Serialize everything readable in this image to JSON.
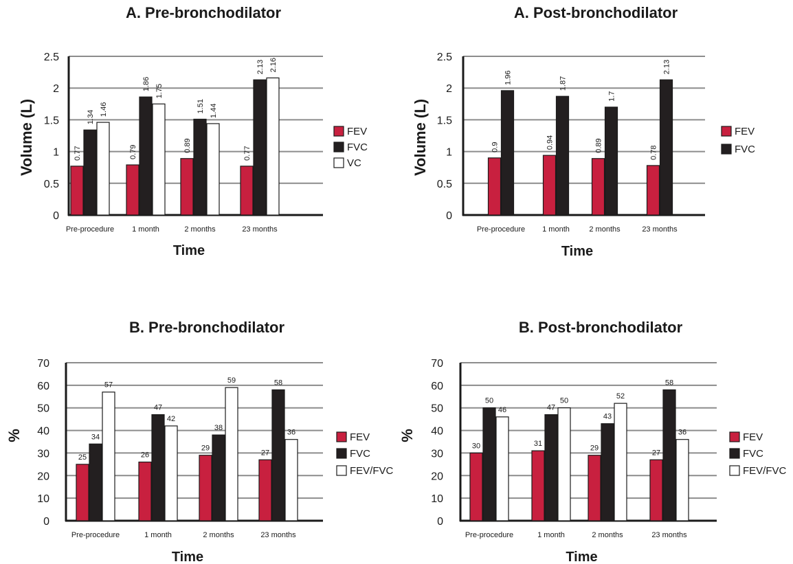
{
  "chart_data": [
    {
      "type": "bar",
      "title": "A. Pre-bronchodilator",
      "xlabel": "Time",
      "ylabel": "Volume (L)",
      "ylim": [
        0,
        2.5
      ],
      "yticks": [
        "0",
        "0.5",
        "1",
        "1.5",
        "2",
        "2.5"
      ],
      "grid": true,
      "legend_position": "right",
      "categories": [
        "Pre-procedure",
        "1 month",
        "2 months",
        "23 months"
      ],
      "series": [
        {
          "name": "FEV",
          "values": [
            0.77,
            0.79,
            0.89,
            0.77
          ],
          "labels": [
            "0.77",
            "0.79",
            "0.89",
            "0.77"
          ],
          "color": "#c8203f"
        },
        {
          "name": "FVC",
          "values": [
            1.34,
            1.86,
            1.51,
            2.13
          ],
          "labels": [
            "1.34",
            "1.86",
            "1.51",
            "2.13"
          ],
          "color": "#231f20"
        },
        {
          "name": "VC",
          "values": [
            1.46,
            1.75,
            1.44,
            2.16
          ],
          "labels": [
            "1.46",
            "1.75",
            "1.44",
            "2.16"
          ],
          "color": "#ffffff"
        }
      ]
    },
    {
      "type": "bar",
      "title": "A. Post-bronchodilator",
      "xlabel": "Time",
      "ylabel": "Volume (L)",
      "ylim": [
        0,
        2.5
      ],
      "yticks": [
        "0",
        "0.5",
        "1",
        "1.5",
        "2",
        "2.5"
      ],
      "grid": true,
      "legend_position": "right",
      "categories": [
        "Pre-procedure",
        "1 month",
        "2 months",
        "23 months"
      ],
      "series": [
        {
          "name": "FEV",
          "values": [
            0.9,
            0.94,
            0.89,
            0.78
          ],
          "labels": [
            "0.9",
            "0.94",
            "0.89",
            "0.78"
          ],
          "color": "#c8203f"
        },
        {
          "name": "FVC",
          "values": [
            1.96,
            1.87,
            1.7,
            2.13
          ],
          "labels": [
            "1.96",
            "1.87",
            "1.7",
            "2.13"
          ],
          "color": "#231f20"
        }
      ]
    },
    {
      "type": "bar",
      "title": "B. Pre-bronchodilator",
      "xlabel": "Time",
      "ylabel": "%",
      "ylim": [
        0,
        70
      ],
      "yticks": [
        "0",
        "10",
        "20",
        "30",
        "40",
        "50",
        "60",
        "70"
      ],
      "grid": true,
      "legend_position": "right",
      "categories": [
        "Pre-procedure",
        "1 month",
        "2 months",
        "23 months"
      ],
      "series": [
        {
          "name": "FEV",
          "values": [
            25,
            26,
            29,
            27
          ],
          "labels": [
            "25",
            "26",
            "29",
            "27"
          ],
          "color": "#c8203f"
        },
        {
          "name": "FVC",
          "values": [
            34,
            47,
            38,
            58
          ],
          "labels": [
            "34",
            "47",
            "38",
            "58"
          ],
          "color": "#231f20"
        },
        {
          "name": "FEV/FVC",
          "values": [
            57,
            42,
            59,
            36
          ],
          "labels": [
            "57",
            "42",
            "59",
            "36"
          ],
          "color": "#ffffff"
        }
      ]
    },
    {
      "type": "bar",
      "title": "B. Post-bronchodilator",
      "xlabel": "Time",
      "ylabel": "%",
      "ylim": [
        0,
        70
      ],
      "yticks": [
        "0",
        "10",
        "20",
        "30",
        "40",
        "50",
        "60",
        "70"
      ],
      "grid": true,
      "legend_position": "right",
      "categories": [
        "Pre-procedure",
        "1 month",
        "2 months",
        "23 months"
      ],
      "series": [
        {
          "name": "FEV",
          "values": [
            30,
            31,
            29,
            27
          ],
          "labels": [
            "30",
            "31",
            "29",
            "27"
          ],
          "color": "#c8203f"
        },
        {
          "name": "FVC",
          "values": [
            50,
            47,
            43,
            58
          ],
          "labels": [
            "50",
            "47",
            "43",
            "58"
          ],
          "color": "#231f20"
        },
        {
          "name": "FEV/FVC",
          "values": [
            46,
            50,
            52,
            36
          ],
          "labels": [
            "46",
            "50",
            "52",
            "36"
          ],
          "color": "#ffffff"
        }
      ]
    }
  ]
}
